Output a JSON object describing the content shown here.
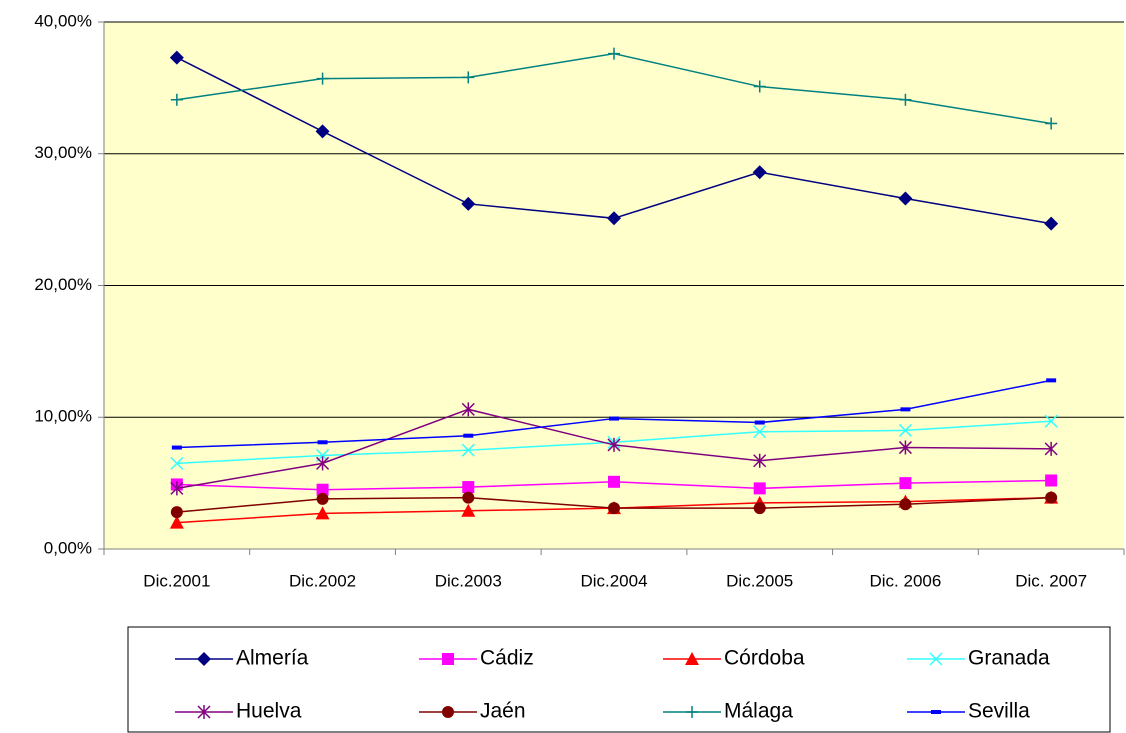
{
  "chart_data": {
    "type": "line",
    "categories": [
      "Dic.2001",
      "Dic.2002",
      "Dic.2003",
      "Dic.2004",
      "Dic.2005",
      "Dic. 2006",
      "Dic. 2007"
    ],
    "ylim": [
      0,
      40
    ],
    "yticks": [
      {
        "value": 0,
        "label": "0,00%"
      },
      {
        "value": 10,
        "label": "10,00%"
      },
      {
        "value": 20,
        "label": "20,00%"
      },
      {
        "value": 30,
        "label": "30,00%"
      },
      {
        "value": 40,
        "label": "40,00%"
      }
    ],
    "grid": true,
    "legend": "bottom",
    "series": [
      {
        "name": "Almería",
        "color": "#000080",
        "marker": "diamond",
        "values": [
          37.3,
          31.7,
          26.2,
          25.1,
          28.6,
          26.6,
          24.7
        ]
      },
      {
        "name": "Cádiz",
        "color": "#ff00ff",
        "marker": "square",
        "values": [
          4.9,
          4.5,
          4.7,
          5.1,
          4.6,
          5.0,
          5.2
        ]
      },
      {
        "name": "Córdoba",
        "color": "#ff0000",
        "marker": "triangle",
        "values": [
          2.0,
          2.7,
          2.9,
          3.1,
          3.5,
          3.6,
          3.9
        ]
      },
      {
        "name": "Granada",
        "color": "#33ffff",
        "marker": "x",
        "values": [
          6.5,
          7.1,
          7.5,
          8.1,
          8.9,
          9.0,
          9.7
        ]
      },
      {
        "name": "Huelva",
        "color": "#800080",
        "marker": "asterisk",
        "values": [
          4.6,
          6.5,
          10.6,
          7.9,
          6.7,
          7.7,
          7.6
        ]
      },
      {
        "name": "Jaén",
        "color": "#800000",
        "marker": "circle",
        "values": [
          2.8,
          3.8,
          3.9,
          3.1,
          3.1,
          3.4,
          3.9
        ]
      },
      {
        "name": "Málaga",
        "color": "#008080",
        "marker": "plus",
        "values": [
          34.1,
          35.7,
          35.8,
          37.6,
          35.1,
          34.1,
          32.3
        ]
      },
      {
        "name": "Sevilla",
        "color": "#0000ff",
        "marker": "dash",
        "values": [
          7.7,
          8.1,
          8.6,
          9.9,
          9.6,
          10.6,
          12.8
        ]
      }
    ]
  }
}
